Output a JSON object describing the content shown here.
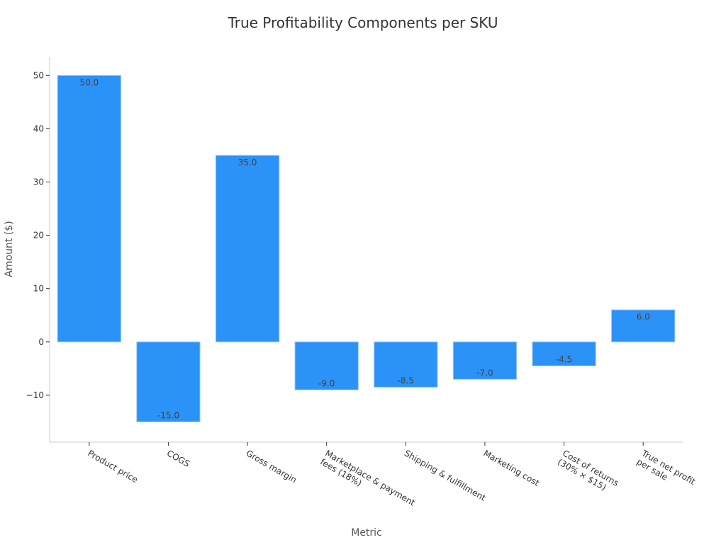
{
  "chart_data": {
    "type": "bar",
    "title": "True Profitability Components per SKU",
    "xlabel": "Metric",
    "ylabel": "Amount ($)",
    "categories": [
      [
        "Product price"
      ],
      [
        "COGS"
      ],
      [
        "Gross margin"
      ],
      [
        "Marketplace & payment",
        "fees (18%)"
      ],
      [
        "Shipping & fulfillment"
      ],
      [
        "Marketing cost"
      ],
      [
        "Cost of returns",
        "(30% × $15)"
      ],
      [
        "True net profit",
        "per sale"
      ]
    ],
    "values": [
      50.0,
      -15.0,
      35.0,
      -9.0,
      -8.5,
      -7.0,
      -4.5,
      6.0
    ],
    "data_labels": [
      "50.0",
      "-15.0",
      "35.0",
      "-9.0",
      "-8.5",
      "-7.0",
      "-4.5",
      "6.0"
    ],
    "ylim": [
      -18.8,
      53.5
    ],
    "yticks": [
      -10,
      0,
      10,
      20,
      30,
      40,
      50
    ],
    "ytick_labels": [
      "−10",
      "0",
      "10",
      "20",
      "30",
      "40",
      "50"
    ],
    "bar_color": "#2b92f7",
    "grid": false
  }
}
